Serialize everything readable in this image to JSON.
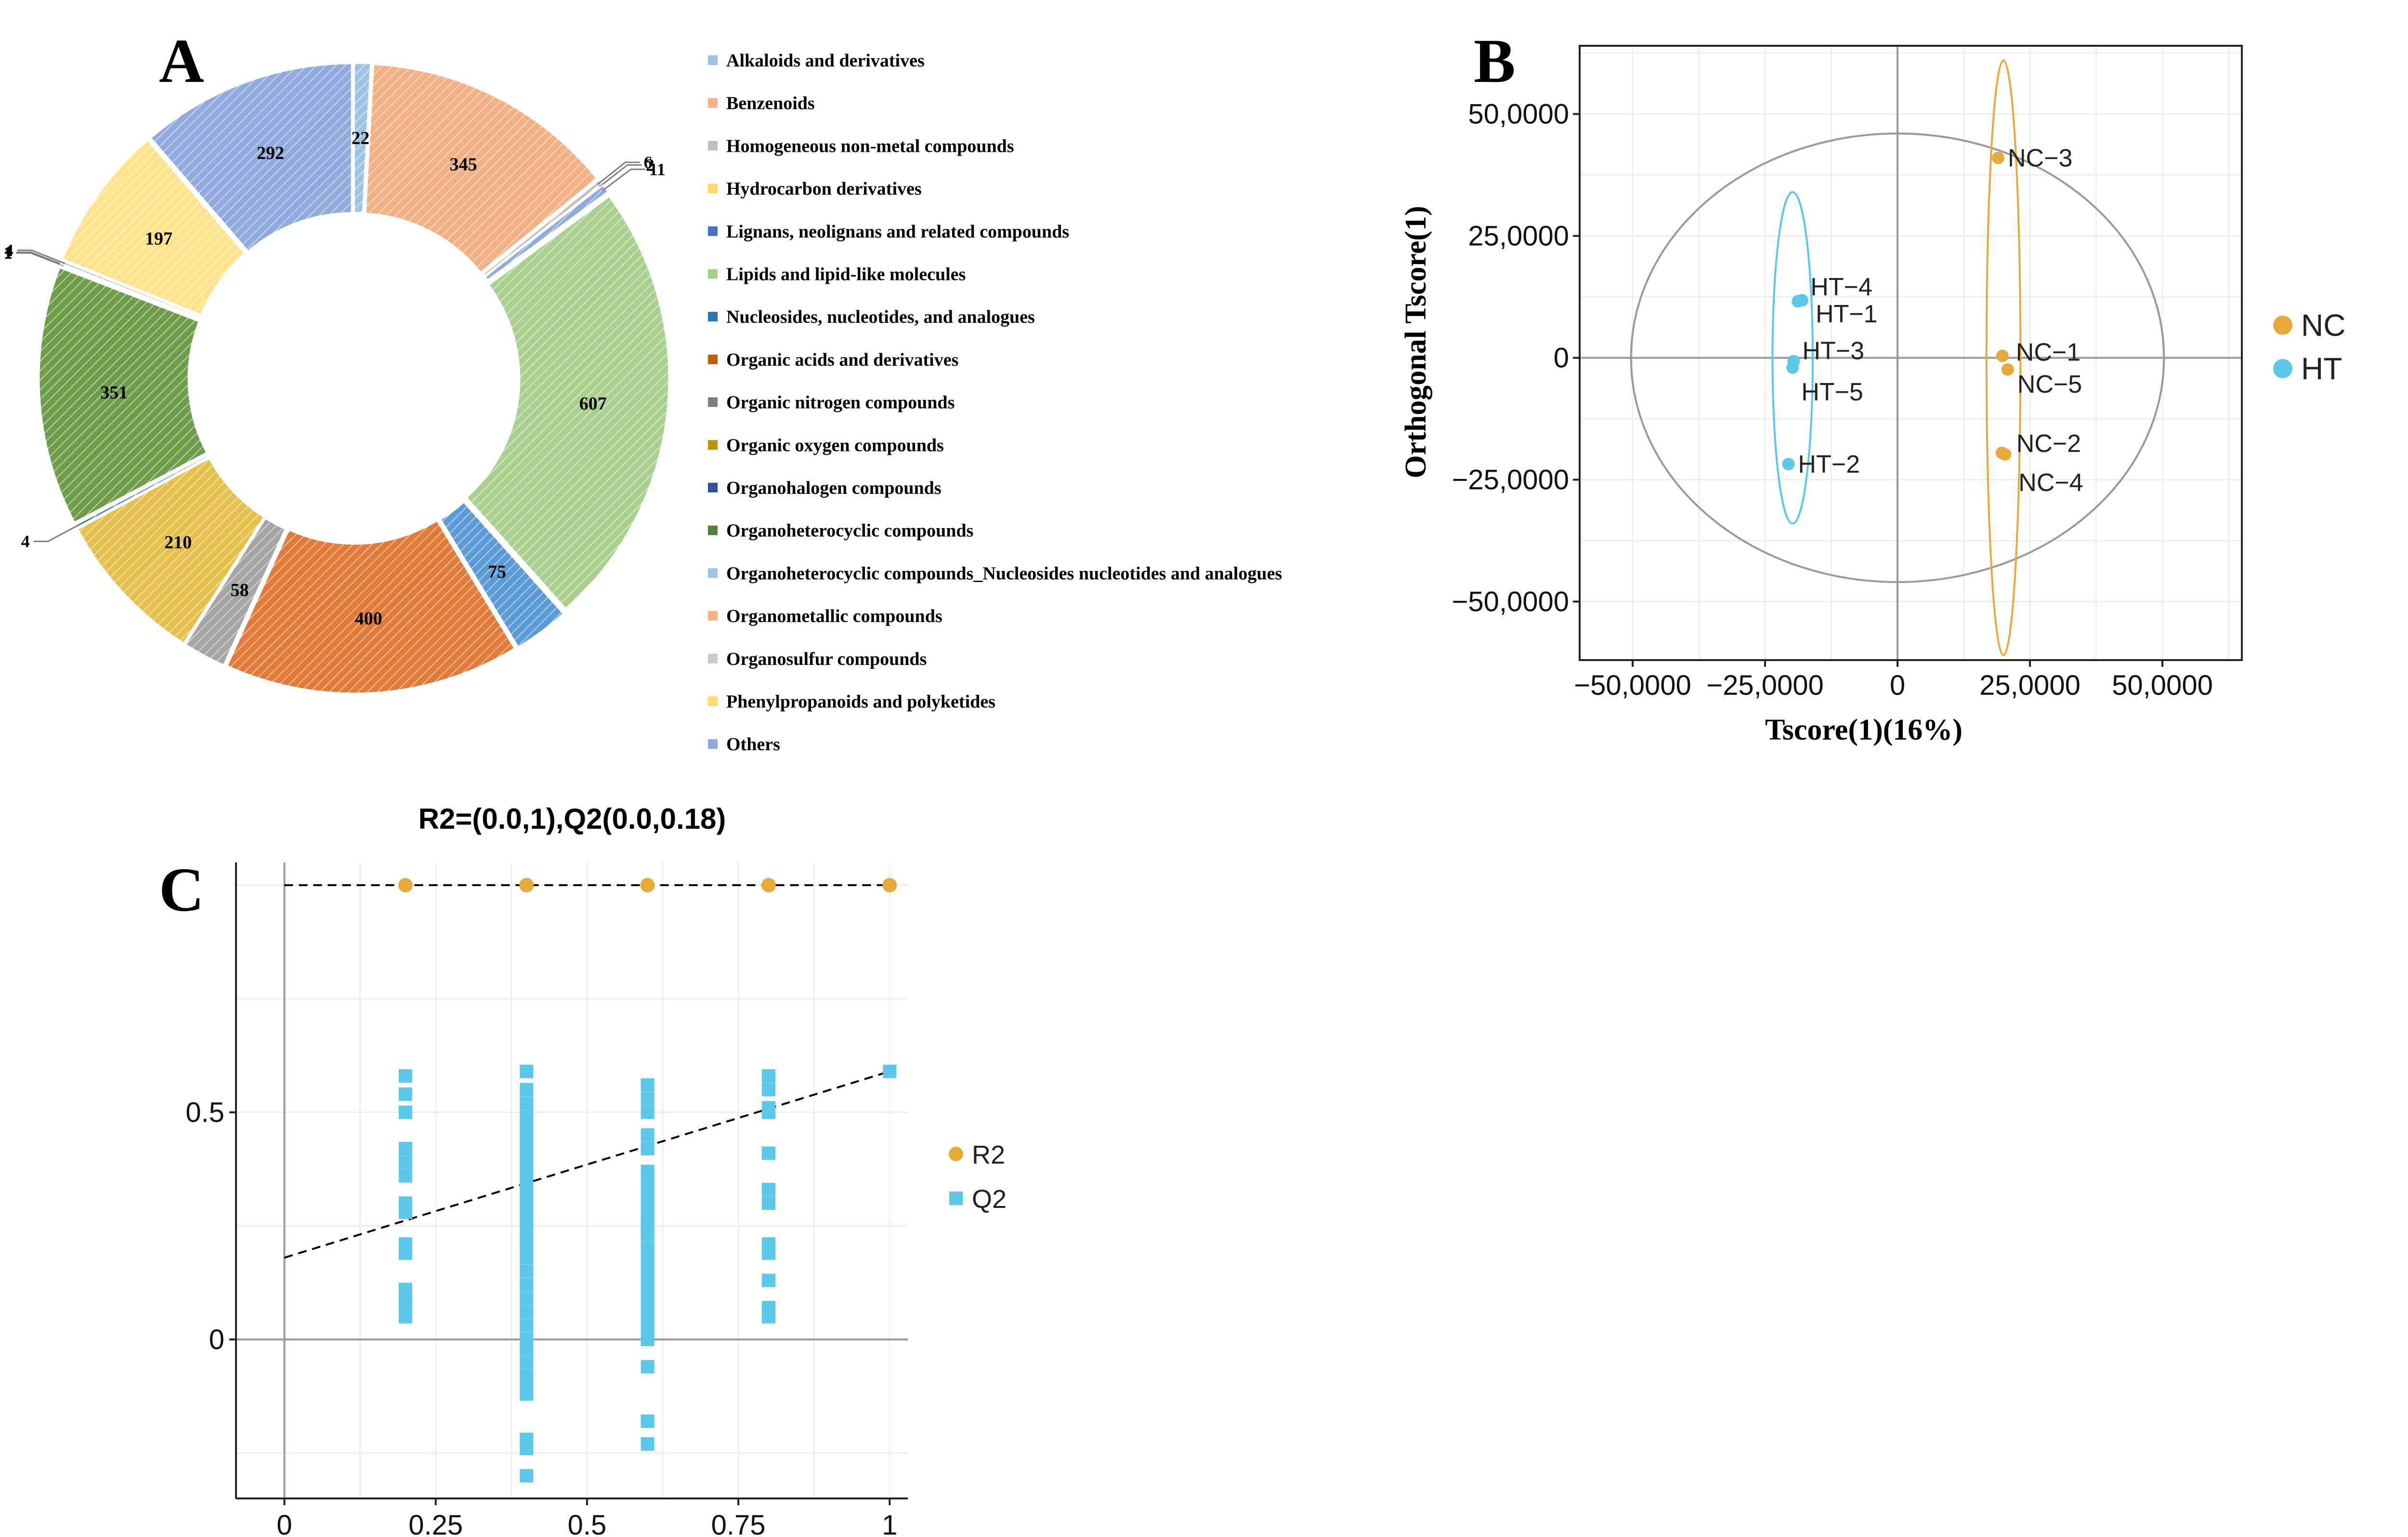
{
  "panel_labels": {
    "a": "A",
    "b": "B",
    "c": "C"
  },
  "chart_data": [
    {
      "panel": "A",
      "type": "pie",
      "donut": true,
      "slices": [
        {
          "name": "Alkaloids and derivatives",
          "value": 22,
          "color": "#9dc3e6"
        },
        {
          "name": "Benzenoids",
          "value": 345,
          "color": "#f4b183"
        },
        {
          "name": "Homogeneous non-metal compounds",
          "value": 6,
          "color": "#bfbfbf"
        },
        {
          "name": "Hydrocarbon derivatives",
          "value": 2,
          "color": "#ffd966"
        },
        {
          "name": "Lignans, neolignans and related compounds",
          "value": 11,
          "color": "#8faadc"
        },
        {
          "name": "Lipids and lipid-like molecules",
          "value": 607,
          "color": "#a9d18e"
        },
        {
          "name": "Nucleosides, nucleotides, and analogues",
          "value": 75,
          "color": "#5b9bd5"
        },
        {
          "name": "Organic acids and derivatives",
          "value": 400,
          "color": "#e07b39"
        },
        {
          "name": "Organic nitrogen compounds",
          "value": 58,
          "color": "#a5a5a5"
        },
        {
          "name": "Organic oxygen compounds",
          "value": 210,
          "color": "#e5c04d"
        },
        {
          "name": "Organohalogen compounds",
          "value": 4,
          "color": "#4472c4"
        },
        {
          "name": "Organoheterocyclic compounds",
          "value": 351,
          "color": "#6e9d4a"
        },
        {
          "name": "Organoheterocyclic compounds_Nucleosides nucleotides and analogues",
          "value": 1,
          "color": "#9dc3e6"
        },
        {
          "name": "Organometallic compounds",
          "value": 1,
          "color": "#f4b183"
        },
        {
          "name": "Organosulfur compounds",
          "value": 4,
          "color": "#c9c9c9"
        },
        {
          "name": "Phenylpropanoids and polyketides",
          "value": 197,
          "color": "#ffe38c"
        },
        {
          "name": "Others",
          "value": 292,
          "color": "#8faadc"
        }
      ],
      "legend": [
        {
          "label": "Alkaloids and derivatives",
          "color": "#9dc3e6"
        },
        {
          "label": "Benzenoids",
          "color": "#f4b183"
        },
        {
          "label": "Homogeneous non-metal compounds",
          "color": "#bfbfbf"
        },
        {
          "label": "Hydrocarbon derivatives",
          "color": "#ffd966"
        },
        {
          "label": "Lignans, neolignans and related compounds",
          "color": "#4472c4"
        },
        {
          "label": "Lipids and lipid-like molecules",
          "color": "#a9d18e"
        },
        {
          "label": "Nucleosides, nucleotides, and analogues",
          "color": "#2e75b6"
        },
        {
          "label": "Organic acids and derivatives",
          "color": "#c55a11"
        },
        {
          "label": "Organic nitrogen compounds",
          "color": "#7f7f7f"
        },
        {
          "label": "Organic oxygen compounds",
          "color": "#bf9000"
        },
        {
          "label": "Organohalogen compounds",
          "color": "#2f5597"
        },
        {
          "label": "Organoheterocyclic compounds",
          "color": "#548235"
        },
        {
          "label": "Organoheterocyclic compounds_Nucleosides nucleotides and analogues",
          "color": "#9dc3e6"
        },
        {
          "label": "Organometallic compounds",
          "color": "#f4b183"
        },
        {
          "label": "Organosulfur compounds",
          "color": "#c9c9c9"
        },
        {
          "label": "Phenylpropanoids and polyketides",
          "color": "#ffd966"
        },
        {
          "label": "Others",
          "color": "#8faadc"
        }
      ]
    },
    {
      "panel": "B",
      "type": "scatter",
      "xlabel": "Tscore(1)(16%)",
      "ylabel": "Orthogonal Tscore(1)",
      "xlim": [
        -60000,
        65000
      ],
      "ylim": [
        -62000,
        64000
      ],
      "xticks": [
        -50000,
        -25000,
        0,
        25000,
        50000
      ],
      "xtick_labels": [
        "−50,0000",
        "−25,0000",
        "0",
        "25,0000",
        "50,0000"
      ],
      "yticks": [
        50000,
        25000,
        0,
        -25000,
        -50000
      ],
      "ytick_labels": [
        "50,0000",
        "25,0000",
        "0",
        "−25,0000",
        "−50,0000"
      ],
      "grid": true,
      "legend_position": "right",
      "series": [
        {
          "name": "NC",
          "color": "#e8a93b",
          "points": [
            {
              "label": "NC−3",
              "x": 19000,
              "y": 41000
            },
            {
              "label": "NC−1",
              "x": 19800,
              "y": 400
            },
            {
              "label": "NC−5",
              "x": 20800,
              "y": -2400
            },
            {
              "label": "NC−2",
              "x": 19700,
              "y": -19500
            },
            {
              "label": "NC−4",
              "x": 20300,
              "y": -19800
            }
          ]
        },
        {
          "name": "HT",
          "color": "#5bc8ea",
          "points": [
            {
              "label": "HT−4",
              "x": -18800,
              "y": 11600
            },
            {
              "label": "HT−1",
              "x": -18000,
              "y": 11800
            },
            {
              "label": "HT−3",
              "x": -19600,
              "y": -700
            },
            {
              "label": "HT−5",
              "x": -19800,
              "y": -2000
            },
            {
              "label": "HT−2",
              "x": -20600,
              "y": -21800
            }
          ]
        }
      ],
      "ellipses": [
        {
          "group": "all",
          "cx": 0,
          "cy": 0,
          "rx": 50300,
          "ry": 46000,
          "color": "#999999"
        },
        {
          "group": "NC",
          "cx": 20000,
          "cy": 0,
          "rx": 3200,
          "ry": 61000,
          "color": "#e8a93b"
        },
        {
          "group": "HT",
          "cx": -19800,
          "cy": 0,
          "rx": 3800,
          "ry": 34000,
          "color": "#5bc8ea"
        }
      ]
    },
    {
      "panel": "C",
      "type": "scatter",
      "title": "R2=(0.0,1),Q2(0.0,0.18)",
      "xlim": [
        -0.08,
        1.03
      ],
      "ylim": [
        -0.35,
        1.05
      ],
      "xticks": [
        0,
        0.25,
        0.5,
        0.75,
        1
      ],
      "xtick_labels": [
        "0",
        "0.25",
        "0.5",
        "0.75",
        "1"
      ],
      "yticks": [
        0,
        0.5
      ],
      "ytick_labels": [
        "0",
        "0.5"
      ],
      "grid": true,
      "legend_position": "right",
      "series": [
        {
          "name": "R2",
          "color": "#e8a93b",
          "marker": "circle",
          "x": [
            0.2,
            0.4,
            0.6,
            0.8,
            1.0
          ],
          "y": [
            1.0,
            1.0,
            1.0,
            1.0,
            1.0
          ]
        },
        {
          "name": "Q2",
          "color": "#5bc8ea",
          "marker": "square",
          "x": [
            0.2,
            0.2,
            0.2,
            0.2,
            0.2,
            0.2,
            0.2,
            0.2,
            0.2,
            0.2,
            0.2,
            0.2,
            0.2,
            0.2,
            0.4,
            0.4,
            0.4,
            0.4,
            0.4,
            0.4,
            0.4,
            0.4,
            0.4,
            0.4,
            0.4,
            0.4,
            0.4,
            0.4,
            0.4,
            0.4,
            0.4,
            0.4,
            0.4,
            0.4,
            0.4,
            0.4,
            0.4,
            0.4,
            0.4,
            0.4,
            0.4,
            0.4,
            0.4,
            0.4,
            0.4,
            0.4,
            0.4,
            0.4,
            0.4,
            0.4,
            0.4,
            0.4,
            0.6,
            0.6,
            0.6,
            0.6,
            0.6,
            0.6,
            0.6,
            0.6,
            0.6,
            0.6,
            0.6,
            0.6,
            0.6,
            0.6,
            0.6,
            0.6,
            0.6,
            0.6,
            0.6,
            0.6,
            0.6,
            0.6,
            0.6,
            0.6,
            0.6,
            0.6,
            0.6,
            0.6,
            0.6,
            0.6,
            0.6,
            0.6,
            0.6,
            0.8,
            0.8,
            0.8,
            0.8,
            0.8,
            0.8,
            0.8,
            0.8,
            0.8,
            0.8,
            0.8,
            0.8,
            1.0
          ],
          "y": [
            0.58,
            0.54,
            0.5,
            0.42,
            0.39,
            0.36,
            0.3,
            0.28,
            0.21,
            0.19,
            0.11,
            0.09,
            0.07,
            0.05,
            0.59,
            0.55,
            0.52,
            0.49,
            0.45,
            0.42,
            0.39,
            0.36,
            0.33,
            0.3,
            0.27,
            0.24,
            0.21,
            0.18,
            0.15,
            0.12,
            0.09,
            0.06,
            0.03,
            0.0,
            -0.02,
            -0.05,
            -0.08,
            -0.1,
            -0.12,
            -0.22,
            -0.24,
            -0.3,
            0.47,
            0.44,
            0.41,
            0.38,
            0.35,
            0.32,
            0.29,
            0.26,
            0.23,
            0.2,
            0.56,
            0.53,
            0.5,
            0.45,
            0.42,
            0.37,
            0.34,
            0.31,
            0.28,
            0.25,
            0.2,
            0.17,
            0.14,
            0.11,
            0.08,
            0.05,
            0.02,
            0.0,
            -0.06,
            -0.18,
            -0.23,
            0.35,
            0.32,
            0.29,
            0.26,
            0.23,
            0.19,
            0.16,
            0.13,
            0.1,
            0.07,
            0.04,
            0.01,
            0.58,
            0.55,
            0.51,
            0.5,
            0.41,
            0.33,
            0.3,
            0.21,
            0.19,
            0.13,
            0.07,
            0.05,
            0.59
          ]
        },
        {
          "name": "R2 regression",
          "style": "dashed",
          "color": "#000000",
          "x": [
            0,
            1
          ],
          "y": [
            1.0,
            1.0
          ]
        },
        {
          "name": "Q2 regression",
          "style": "dashed",
          "color": "#000000",
          "x": [
            0,
            1
          ],
          "y": [
            0.18,
            0.59
          ]
        }
      ]
    }
  ]
}
